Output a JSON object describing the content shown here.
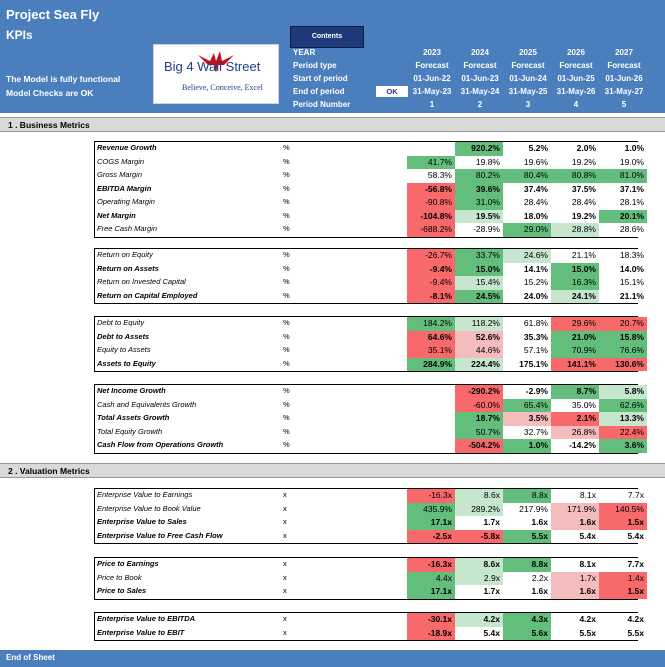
{
  "header": {
    "title": "Project Sea Fly",
    "subtitle": "KPIs",
    "note_line1": "The Model is fully functional",
    "note_line2": "Model Checks are OK",
    "logo_text": "Big 4 Wall Street",
    "logo_tagline": "Believe, Conceive, Excel",
    "contents_label": "Contents",
    "ok_label": "OK"
  },
  "periods": {
    "labels": [
      "YEAR",
      "Period type",
      "Start of period",
      "End of period",
      "Period Number"
    ],
    "columns": [
      {
        "year": "2023",
        "type": "Forecast",
        "start": "01-Jun-22",
        "end": "31-May-23",
        "num": "1"
      },
      {
        "year": "2024",
        "type": "Forecast",
        "start": "01-Jun-23",
        "end": "31-May-24",
        "num": "2"
      },
      {
        "year": "2025",
        "type": "Forecast",
        "start": "01-Jun-24",
        "end": "31-May-25",
        "num": "3"
      },
      {
        "year": "2026",
        "type": "Forecast",
        "start": "01-Jun-25",
        "end": "31-May-26",
        "num": "4"
      },
      {
        "year": "2027",
        "type": "Forecast",
        "start": "01-Jun-26",
        "end": "31-May-27",
        "num": "5"
      }
    ]
  },
  "colors": {
    "green": "#63be7b",
    "lightgreen": "#c6e6ce",
    "white": "#ffffff",
    "lightred": "#f4bcbd",
    "red": "#f8696b",
    "header": "#4a7ebd"
  },
  "sections": [
    {
      "title": "1 .  Business Metrics",
      "blocks": [
        {
          "rows": [
            {
              "label": "Revenue Growth",
              "unit": "%",
              "bold": true,
              "values": [
                "",
                "920.2%",
                "5.2%",
                "2.0%",
                "1.0%"
              ],
              "colors": [
                "white",
                "green",
                "white",
                "white",
                "white"
              ]
            },
            {
              "label": "COGS Margin",
              "unit": "%",
              "bold": false,
              "values": [
                "41.7%",
                "19.8%",
                "19.6%",
                "19.2%",
                "19.0%"
              ],
              "colors": [
                "green",
                "white",
                "white",
                "white",
                "white"
              ]
            },
            {
              "label": "Gross Margin",
              "unit": "%",
              "bold": false,
              "values": [
                "58.3%",
                "80.2%",
                "80.4%",
                "80.8%",
                "81.0%"
              ],
              "colors": [
                "white",
                "green",
                "green",
                "green",
                "green"
              ]
            },
            {
              "label": "EBITDA Margin",
              "unit": "%",
              "bold": true,
              "values": [
                "-56.8%",
                "39.6%",
                "37.4%",
                "37.5%",
                "37.1%"
              ],
              "colors": [
                "red",
                "green",
                "white",
                "white",
                "white"
              ]
            },
            {
              "label": "Operating Margin",
              "unit": "%",
              "bold": false,
              "values": [
                "-90.8%",
                "31.0%",
                "28.4%",
                "28.4%",
                "28.1%"
              ],
              "colors": [
                "red",
                "green",
                "white",
                "white",
                "white"
              ]
            },
            {
              "label": "Net Margin",
              "unit": "%",
              "bold": true,
              "values": [
                "-104.8%",
                "19.5%",
                "18.0%",
                "19.2%",
                "20.1%"
              ],
              "colors": [
                "red",
                "lightgreen",
                "white",
                "white",
                "green"
              ]
            },
            {
              "label": "Free Cash Margin",
              "unit": "%",
              "bold": false,
              "values": [
                "-688.2%",
                "-28.9%",
                "29.0%",
                "28.8%",
                "28.6%"
              ],
              "colors": [
                "red",
                "white",
                "green",
                "lightgreen",
                "white"
              ]
            }
          ]
        },
        {
          "rows": [
            {
              "label": "Return on Equity",
              "unit": "%",
              "bold": false,
              "values": [
                "-26.7%",
                "33.7%",
                "24.6%",
                "21.1%",
                "18.3%"
              ],
              "colors": [
                "red",
                "green",
                "lightgreen",
                "white",
                "white"
              ]
            },
            {
              "label": "Return on Assets",
              "unit": "%",
              "bold": true,
              "values": [
                "-9.4%",
                "15.0%",
                "14.1%",
                "15.0%",
                "14.0%"
              ],
              "colors": [
                "red",
                "green",
                "white",
                "green",
                "white"
              ]
            },
            {
              "label": "Return on Invested Capital",
              "unit": "%",
              "bold": false,
              "values": [
                "-9.4%",
                "15.4%",
                "15.2%",
                "16.3%",
                "15.1%"
              ],
              "colors": [
                "red",
                "lightgreen",
                "white",
                "green",
                "white"
              ]
            },
            {
              "label": "Return on Capital Employed",
              "unit": "%",
              "bold": true,
              "values": [
                "-8.1%",
                "24.5%",
                "24.0%",
                "24.1%",
                "21.1%"
              ],
              "colors": [
                "red",
                "green",
                "white",
                "lightgreen",
                "white"
              ]
            }
          ]
        },
        {
          "rows": [
            {
              "label": "Debt to Equity",
              "unit": "%",
              "bold": false,
              "values": [
                "184.2%",
                "118.2%",
                "61.8%",
                "29.6%",
                "20.7%"
              ],
              "colors": [
                "green",
                "lightgreen",
                "white",
                "red",
                "red"
              ]
            },
            {
              "label": "Debt to Assets",
              "unit": "%",
              "bold": true,
              "values": [
                "64.6%",
                "52.6%",
                "35.3%",
                "21.0%",
                "15.8%"
              ],
              "colors": [
                "red",
                "lightred",
                "white",
                "green",
                "green"
              ]
            },
            {
              "label": "Equity to Assets",
              "unit": "%",
              "bold": false,
              "values": [
                "35.1%",
                "44.6%",
                "57.1%",
                "70.9%",
                "76.6%"
              ],
              "colors": [
                "red",
                "lightred",
                "white",
                "green",
                "green"
              ]
            },
            {
              "label": "Assets to Equity",
              "unit": "%",
              "bold": true,
              "values": [
                "284.9%",
                "224.4%",
                "175.1%",
                "141.1%",
                "130.6%"
              ],
              "colors": [
                "green",
                "lightgreen",
                "white",
                "red",
                "red"
              ]
            }
          ]
        },
        {
          "rows": [
            {
              "label": "Net Income Growth",
              "unit": "%",
              "bold": true,
              "values": [
                "",
                "-290.2%",
                "-2.9%",
                "8.7%",
                "5.8%"
              ],
              "colors": [
                "white",
                "red",
                "white",
                "green",
                "lightgreen"
              ]
            },
            {
              "label": "Cash and Equivalents Growth",
              "unit": "%",
              "bold": false,
              "values": [
                "",
                "-60.0%",
                "65.4%",
                "35.0%",
                "62.6%"
              ],
              "colors": [
                "white",
                "red",
                "green",
                "white",
                "green"
              ]
            },
            {
              "label": "Total Assets Growth",
              "unit": "%",
              "bold": true,
              "values": [
                "",
                "18.7%",
                "3.5%",
                "2.1%",
                "13.3%"
              ],
              "colors": [
                "white",
                "green",
                "lightred",
                "red",
                "lightgreen"
              ]
            },
            {
              "label": "Total Equity Growth",
              "unit": "%",
              "bold": false,
              "values": [
                "",
                "50.7%",
                "32.7%",
                "26.8%",
                "22.4%"
              ],
              "colors": [
                "white",
                "green",
                "white",
                "lightred",
                "red"
              ]
            },
            {
              "label": "Cash Flow from Operations Growth",
              "unit": "%",
              "bold": true,
              "values": [
                "",
                "-504.2%",
                "1.0%",
                "-14.2%",
                "3.6%"
              ],
              "colors": [
                "white",
                "red",
                "green",
                "white",
                "green"
              ]
            }
          ]
        }
      ]
    },
    {
      "title": "2 .  Valuation Metrics",
      "blocks": [
        {
          "rows": [
            {
              "label": "Enterprise Value to Earnings",
              "unit": "x",
              "bold": false,
              "values": [
                "-16.3x",
                "8.6x",
                "8.8x",
                "8.1x",
                "7.7x"
              ],
              "colors": [
                "red",
                "lightgreen",
                "green",
                "white",
                "white"
              ]
            },
            {
              "label": "Enterprise Value to Book Value",
              "unit": "x",
              "bold": false,
              "values": [
                "435.9%",
                "289.2%",
                "217.9%",
                "171.9%",
                "140.5%"
              ],
              "colors": [
                "green",
                "lightgreen",
                "white",
                "lightred",
                "red"
              ]
            },
            {
              "label": "Enterprise Value to Sales",
              "unit": "x",
              "bold": true,
              "values": [
                "17.1x",
                "1.7x",
                "1.6x",
                "1.6x",
                "1.5x"
              ],
              "colors": [
                "green",
                "white",
                "white",
                "lightred",
                "red"
              ]
            },
            {
              "label": "Enterprise Value to Free Cash Flow",
              "unit": "x",
              "bold": true,
              "values": [
                "-2.5x",
                "-5.8x",
                "5.5x",
                "5.4x",
                "5.4x"
              ],
              "colors": [
                "red",
                "red",
                "green",
                "white",
                "white"
              ]
            }
          ]
        },
        {
          "rows": [
            {
              "label": "Price to Earnings",
              "unit": "x",
              "bold": true,
              "values": [
                "-16.3x",
                "8.6x",
                "8.8x",
                "8.1x",
                "7.7x"
              ],
              "colors": [
                "red",
                "lightgreen",
                "green",
                "white",
                "white"
              ]
            },
            {
              "label": "Price to Book",
              "unit": "x",
              "bold": false,
              "values": [
                "4.4x",
                "2.9x",
                "2.2x",
                "1.7x",
                "1.4x"
              ],
              "colors": [
                "green",
                "lightgreen",
                "white",
                "lightred",
                "red"
              ]
            },
            {
              "label": "Price to Sales",
              "unit": "x",
              "bold": true,
              "values": [
                "17.1x",
                "1.7x",
                "1.6x",
                "1.6x",
                "1.5x"
              ],
              "colors": [
                "green",
                "white",
                "white",
                "lightred",
                "red"
              ]
            }
          ]
        },
        {
          "rows": [
            {
              "label": "Enterprise Value to EBITDA",
              "unit": "x",
              "bold": true,
              "values": [
                "-30.1x",
                "4.2x",
                "4.3x",
                "4.2x",
                "4.2x"
              ],
              "colors": [
                "red",
                "lightgreen",
                "green",
                "white",
                "white"
              ]
            },
            {
              "label": "Enterprise Value to EBIT",
              "unit": "x",
              "bold": true,
              "values": [
                "-18.9x",
                "5.4x",
                "5.6x",
                "5.5x",
                "5.5x"
              ],
              "colors": [
                "red",
                "white",
                "green",
                "white",
                "white"
              ]
            }
          ]
        }
      ]
    }
  ],
  "footer": {
    "label": "End of Sheet"
  }
}
